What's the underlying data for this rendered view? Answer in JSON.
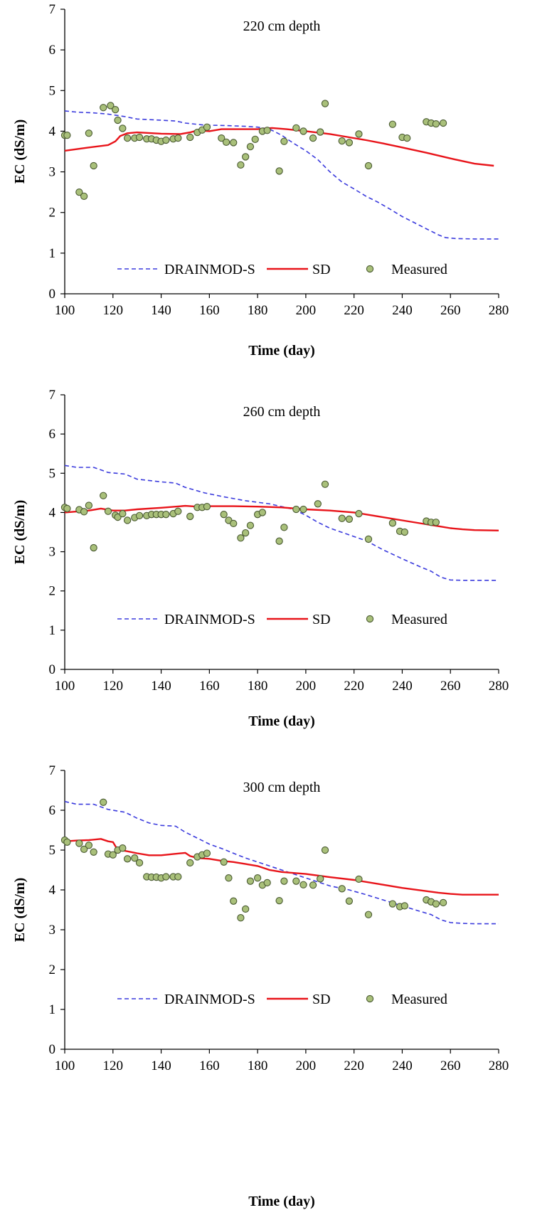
{
  "colors": {
    "drainmod": "#3b3bdd",
    "sd": "#e8141a",
    "measured_fill": "#a9c07a",
    "measured_stroke": "#4a5a32",
    "axis": "#000000"
  },
  "chart_data": [
    {
      "type": "line",
      "title": "220 cm depth",
      "xlabel": "Time (day)",
      "ylabel": "EC (dS/m)",
      "xlim": [
        100,
        280
      ],
      "ylim": [
        0,
        7
      ],
      "xticks": [
        100,
        120,
        140,
        160,
        180,
        200,
        220,
        240,
        260,
        280
      ],
      "yticks": [
        0,
        1,
        2,
        3,
        4,
        5,
        6,
        7
      ],
      "grid": false,
      "legend_position": "bottom-center",
      "series": [
        {
          "name": "DRAINMOD-S",
          "style": "dashed",
          "x": [
            100,
            105,
            112,
            118,
            125,
            130,
            140,
            146,
            150,
            158,
            166,
            175,
            180,
            185,
            190,
            195,
            200,
            205,
            210,
            215,
            220,
            225,
            230,
            235,
            240,
            245,
            250,
            255,
            258,
            262,
            270,
            280
          ],
          "y": [
            4.5,
            4.47,
            4.45,
            4.42,
            4.36,
            4.3,
            4.27,
            4.25,
            4.2,
            4.15,
            4.14,
            4.12,
            4.1,
            4.05,
            3.9,
            3.7,
            3.52,
            3.3,
            3.0,
            2.75,
            2.58,
            2.4,
            2.25,
            2.08,
            1.9,
            1.75,
            1.6,
            1.45,
            1.38,
            1.36,
            1.35,
            1.35
          ]
        },
        {
          "name": "SD",
          "style": "solid",
          "x": [
            100,
            110,
            118,
            121,
            123,
            126,
            130,
            140,
            148,
            152,
            155,
            160,
            165,
            172,
            180,
            186,
            192,
            200,
            210,
            218,
            225,
            232,
            240,
            250,
            260,
            270,
            278
          ],
          "y": [
            3.52,
            3.6,
            3.66,
            3.75,
            3.88,
            3.95,
            3.97,
            3.94,
            3.93,
            3.97,
            4.02,
            4.0,
            4.05,
            4.05,
            4.05,
            4.08,
            4.05,
            4.0,
            3.93,
            3.85,
            3.78,
            3.7,
            3.6,
            3.47,
            3.33,
            3.2,
            3.15
          ]
        },
        {
          "name": "Measured",
          "style": "markers",
          "x": [
            100,
            101,
            106,
            108,
            110,
            112,
            116,
            119,
            121,
            122,
            124,
            126,
            129,
            131,
            134,
            136,
            138,
            140,
            142,
            145,
            147,
            152,
            155,
            157,
            159,
            165,
            167,
            170,
            173,
            175,
            177,
            179,
            182,
            184,
            189,
            191,
            196,
            199,
            203,
            206,
            208,
            215,
            218,
            222,
            226,
            236,
            240,
            242,
            250,
            252,
            254,
            257
          ],
          "y": [
            3.9,
            3.9,
            2.5,
            2.4,
            3.95,
            3.15,
            4.58,
            4.63,
            4.53,
            4.27,
            4.07,
            3.83,
            3.83,
            3.85,
            3.81,
            3.81,
            3.78,
            3.75,
            3.78,
            3.81,
            3.83,
            3.85,
            3.97,
            4.03,
            4.1,
            3.83,
            3.73,
            3.72,
            3.17,
            3.37,
            3.62,
            3.8,
            4.0,
            4.02,
            3.02,
            3.75,
            4.08,
            4.0,
            3.83,
            3.98,
            4.68,
            3.76,
            3.72,
            3.93,
            3.15,
            4.17,
            3.85,
            3.83,
            4.23,
            4.2,
            4.18,
            4.2
          ]
        }
      ]
    },
    {
      "type": "line",
      "title": "260 cm depth",
      "xlabel": "Time (day)",
      "ylabel": "EC (dS/m)",
      "xlim": [
        100,
        280
      ],
      "ylim": [
        0,
        7
      ],
      "xticks": [
        100,
        120,
        140,
        160,
        180,
        200,
        220,
        240,
        260,
        280
      ],
      "yticks": [
        0,
        1,
        2,
        3,
        4,
        5,
        6,
        7
      ],
      "grid": false,
      "legend_position": "bottom-center",
      "series": [
        {
          "name": "DRAINMOD-S",
          "style": "dashed",
          "x": [
            100,
            105,
            112,
            118,
            125,
            130,
            140,
            146,
            150,
            158,
            166,
            175,
            185,
            195,
            200,
            205,
            210,
            218,
            225,
            232,
            240,
            248,
            252,
            256,
            260,
            265,
            270,
            280
          ],
          "y": [
            5.2,
            5.15,
            5.15,
            5.02,
            4.98,
            4.85,
            4.78,
            4.75,
            4.64,
            4.5,
            4.4,
            4.3,
            4.22,
            4.08,
            3.93,
            3.75,
            3.6,
            3.43,
            3.28,
            3.05,
            2.82,
            2.6,
            2.5,
            2.35,
            2.28,
            2.27,
            2.27,
            2.27
          ]
        },
        {
          "name": "SD",
          "style": "solid",
          "x": [
            100,
            110,
            115,
            120,
            125,
            130,
            140,
            150,
            155,
            160,
            170,
            180,
            190,
            200,
            210,
            220,
            230,
            240,
            250,
            255,
            260,
            265,
            270,
            280
          ],
          "y": [
            4.0,
            4.05,
            4.1,
            4.05,
            4.05,
            4.08,
            4.12,
            4.17,
            4.15,
            4.16,
            4.16,
            4.15,
            4.13,
            4.08,
            4.05,
            4.0,
            3.9,
            3.8,
            3.7,
            3.65,
            3.6,
            3.57,
            3.55,
            3.54
          ]
        },
        {
          "name": "Measured",
          "style": "markers",
          "x": [
            100,
            101,
            106,
            108,
            110,
            112,
            116,
            118,
            121,
            122,
            124,
            126,
            129,
            131,
            134,
            136,
            138,
            140,
            142,
            145,
            147,
            152,
            155,
            157,
            159,
            166,
            168,
            170,
            173,
            175,
            177,
            180,
            182,
            189,
            191,
            196,
            199,
            205,
            208,
            215,
            218,
            222,
            226,
            236,
            239,
            241,
            250,
            252,
            254
          ],
          "y": [
            4.13,
            4.1,
            4.07,
            4.02,
            4.18,
            3.1,
            4.43,
            4.03,
            3.93,
            3.88,
            3.97,
            3.8,
            3.87,
            3.92,
            3.92,
            3.95,
            3.95,
            3.95,
            3.95,
            3.97,
            4.03,
            3.9,
            4.13,
            4.13,
            4.15,
            3.95,
            3.8,
            3.72,
            3.35,
            3.48,
            3.67,
            3.95,
            4.0,
            3.27,
            3.62,
            4.08,
            4.08,
            4.22,
            4.72,
            3.85,
            3.83,
            3.97,
            3.32,
            3.73,
            3.52,
            3.5,
            3.78,
            3.75,
            3.75
          ]
        }
      ]
    },
    {
      "type": "line",
      "title": "300 cm depth",
      "xlabel": "Time (day)",
      "ylabel": "EC (dS/m)",
      "xlim": [
        100,
        280
      ],
      "ylim": [
        0,
        7
      ],
      "xticks": [
        100,
        120,
        140,
        160,
        180,
        200,
        220,
        240,
        260,
        280
      ],
      "yticks": [
        0,
        1,
        2,
        3,
        4,
        5,
        6,
        7
      ],
      "grid": false,
      "legend_position": "bottom-center",
      "series": [
        {
          "name": "DRAINMOD-S",
          "style": "dashed",
          "x": [
            100,
            105,
            112,
            118,
            125,
            130,
            135,
            140,
            146,
            150,
            155,
            160,
            166,
            170,
            175,
            180,
            185,
            190,
            195,
            200,
            205,
            210,
            218,
            225,
            232,
            240,
            248,
            252,
            256,
            260,
            265,
            270,
            280
          ],
          "y": [
            6.22,
            6.15,
            6.15,
            6.02,
            5.95,
            5.8,
            5.68,
            5.62,
            5.6,
            5.45,
            5.3,
            5.15,
            5.02,
            4.92,
            4.8,
            4.7,
            4.6,
            4.5,
            4.4,
            4.3,
            4.2,
            4.1,
            4.0,
            3.88,
            3.75,
            3.6,
            3.45,
            3.38,
            3.25,
            3.18,
            3.16,
            3.15,
            3.15
          ]
        },
        {
          "name": "SD",
          "style": "solid",
          "x": [
            100,
            105,
            110,
            115,
            118,
            120,
            122,
            125,
            130,
            135,
            140,
            145,
            150,
            152,
            155,
            160,
            165,
            170,
            175,
            180,
            185,
            190,
            200,
            210,
            220,
            230,
            240,
            250,
            255,
            260,
            265,
            270,
            280
          ],
          "y": [
            5.22,
            5.24,
            5.25,
            5.28,
            5.22,
            5.2,
            5.0,
            4.98,
            4.92,
            4.87,
            4.87,
            4.9,
            4.93,
            4.85,
            4.8,
            4.78,
            4.73,
            4.7,
            4.65,
            4.6,
            4.5,
            4.45,
            4.4,
            4.32,
            4.25,
            4.15,
            4.05,
            3.97,
            3.93,
            3.9,
            3.88,
            3.88,
            3.88
          ]
        },
        {
          "name": "Measured",
          "style": "markers",
          "x": [
            100,
            101,
            106,
            108,
            110,
            112,
            116,
            118,
            120,
            122,
            124,
            126,
            129,
            131,
            134,
            136,
            138,
            140,
            142,
            145,
            147,
            152,
            155,
            157,
            159,
            166,
            168,
            170,
            173,
            175,
            177,
            180,
            182,
            184,
            189,
            191,
            196,
            199,
            203,
            206,
            208,
            215,
            218,
            222,
            226,
            236,
            239,
            241,
            250,
            252,
            254,
            257
          ],
          "y": [
            5.25,
            5.2,
            5.17,
            5.02,
            5.12,
            4.95,
            6.2,
            4.9,
            4.88,
            5.0,
            5.05,
            4.78,
            4.8,
            4.68,
            4.33,
            4.32,
            4.32,
            4.3,
            4.33,
            4.33,
            4.33,
            4.68,
            4.83,
            4.88,
            4.92,
            4.7,
            4.3,
            3.72,
            3.3,
            3.52,
            4.22,
            4.3,
            4.12,
            4.18,
            3.73,
            4.22,
            4.22,
            4.13,
            4.12,
            4.28,
            5.0,
            4.03,
            3.72,
            4.27,
            3.38,
            3.65,
            3.58,
            3.6,
            3.75,
            3.7,
            3.65,
            3.68
          ]
        }
      ]
    }
  ]
}
